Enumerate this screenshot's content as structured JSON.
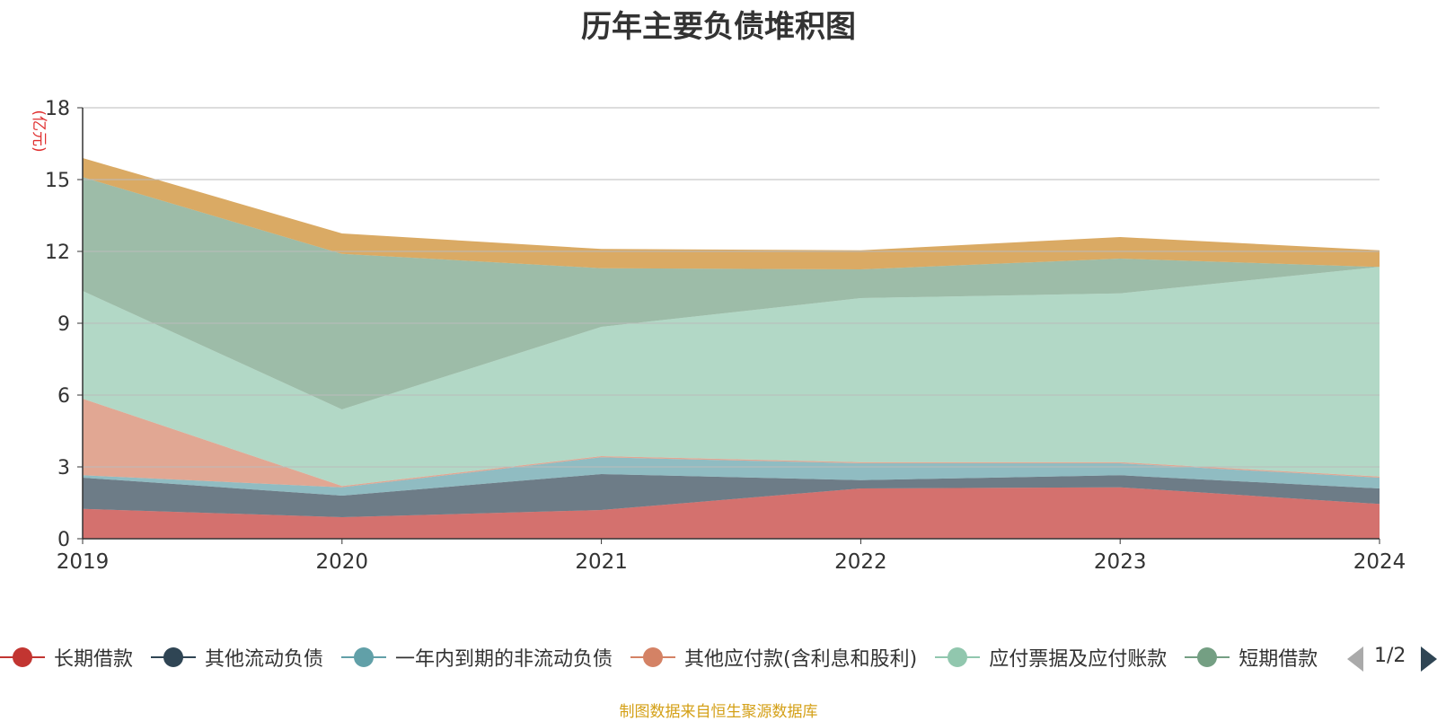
{
  "chart_data": {
    "type": "area",
    "title": "历年主要负债堆积图",
    "ylabel": "(亿元)",
    "xlabel": "",
    "ylim": [
      0,
      18
    ],
    "yticks": [
      "0",
      "3",
      "6",
      "9",
      "12",
      "15",
      "18"
    ],
    "categories": [
      "2019",
      "2020",
      "2021",
      "2022",
      "2023",
      "2024"
    ],
    "stacked": true,
    "grid": true,
    "legend_position": "bottom",
    "series": [
      {
        "name": "长期借款",
        "color": "#c23531",
        "values": [
          1.25,
          0.9,
          1.2,
          2.1,
          2.15,
          1.45
        ]
      },
      {
        "name": "其他流动负债",
        "color": "#2f4554",
        "values": [
          1.3,
          0.9,
          1.5,
          0.35,
          0.5,
          0.65
        ]
      },
      {
        "name": "一年内到期的非流动负债",
        "color": "#61a0a8",
        "values": [
          0.1,
          0.35,
          0.7,
          0.7,
          0.5,
          0.45
        ]
      },
      {
        "name": "其他应付款(含利息和股利)",
        "color": "#d48265",
        "values": [
          3.2,
          0.05,
          0.05,
          0.05,
          0.05,
          0.05
        ]
      },
      {
        "name": "应付票据及应付账款",
        "color": "#91c7ae",
        "values": [
          4.5,
          3.2,
          5.4,
          6.85,
          7.05,
          8.75
        ]
      },
      {
        "name": "短期借款",
        "color": "#749f83",
        "values": [
          4.75,
          6.5,
          2.45,
          1.2,
          1.45,
          0.0
        ]
      },
      {
        "name": "",
        "color": "#ca8622",
        "values": [
          0.8,
          0.85,
          0.8,
          0.8,
          0.9,
          0.7
        ]
      }
    ]
  },
  "legend": {
    "items": [
      {
        "label": "长期借款",
        "color": "#c23531"
      },
      {
        "label": "其他流动负债",
        "color": "#2f4554"
      },
      {
        "label": "一年内到期的非流动负债",
        "color": "#61a0a8"
      },
      {
        "label": "其他应付款(含利息和股利)",
        "color": "#d48265"
      },
      {
        "label": "应付票据及应付账款",
        "color": "#91c7ae"
      },
      {
        "label": "短期借款",
        "color": "#749f83"
      }
    ],
    "page_indicator": "1/2"
  },
  "source_note": "制图数据来自恒生聚源数据库"
}
